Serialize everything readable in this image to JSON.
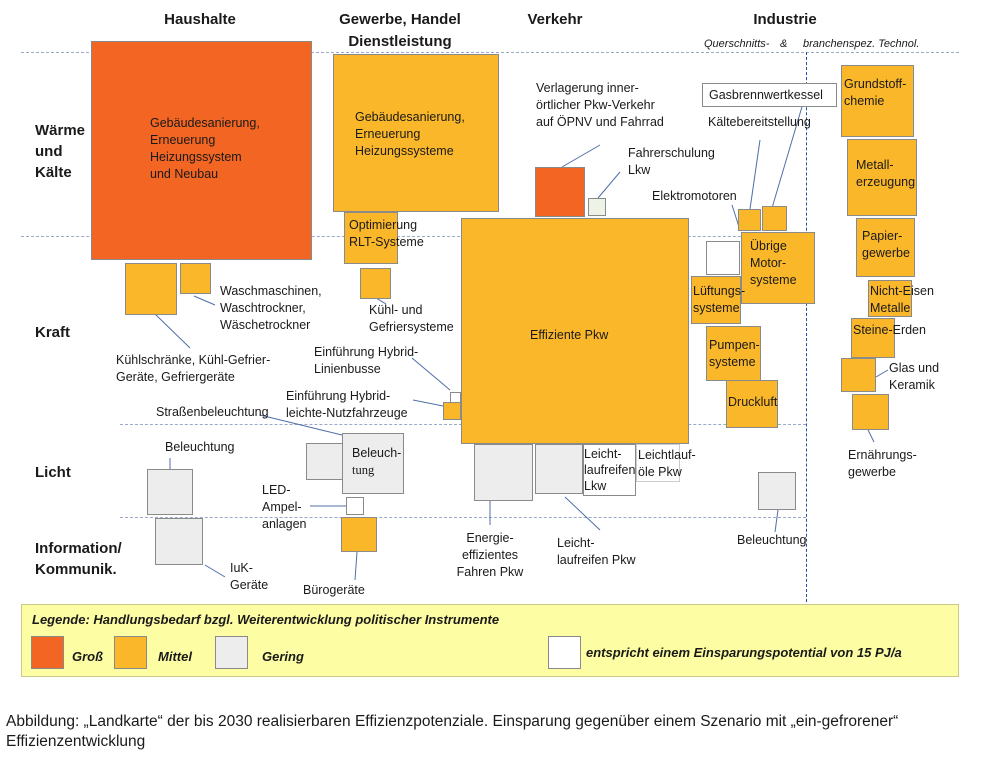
{
  "columns": {
    "haushalte": "Haushalte",
    "gewerbe_1": "Gewerbe, Handel",
    "gewerbe_2": "Dienstleistung",
    "verkehr": "Verkehr",
    "industrie": "Industrie",
    "industrie_sub_1": "Querschnitts-",
    "industrie_sub_2": "&",
    "industrie_sub_3": "branchenspez. Technol."
  },
  "rows": {
    "waerme_1": "Wärme",
    "waerme_2": "und",
    "waerme_3": "Kälte",
    "kraft": "Kraft",
    "licht": "Licht",
    "info_1": "Information/",
    "info_2": "Kommunik."
  },
  "boxes": {
    "hh_waerme": [
      "Gebäudesanierung,",
      "Erneuerung",
      "Heizungssystem",
      "und Neubau"
    ],
    "ghd_waerme": [
      "Gebäudesanierung,",
      "Erneuerung",
      "Heizungssysteme"
    ],
    "ghd_rlt": [
      "Optimierung",
      "RLT-Systeme"
    ],
    "pkw": "Effiziente Pkw",
    "ghd_licht_1": "Beleuch-",
    "ghd_licht_2": "tung",
    "lueftung": [
      "Lüftungs-",
      "systeme"
    ],
    "motor": [
      "Übrige",
      "Motor-",
      "systeme"
    ],
    "pumpen": [
      "Pumpen-",
      "systeme"
    ],
    "druckluft": "Druckluft",
    "grundstoff": [
      "Grundstoff-",
      "chemie"
    ],
    "metall": [
      "Metall-",
      "erzeugung"
    ],
    "papier": [
      "Papier-",
      "gewerbe"
    ],
    "ne": [
      "Nicht-Eisen",
      "Metalle"
    ],
    "steine": "Steine-Erden",
    "leicht_lkw": [
      "Leicht-",
      "laufreifen",
      "Lkw"
    ],
    "gasbrenn": "Gasbrennwertkessel"
  },
  "labels": {
    "wasch": [
      "Waschmaschinen,",
      "Waschtrockner,",
      "Wäschetrockner"
    ],
    "kuehl_hh": [
      "Kühlschränke, Kühl-Gefrier-",
      "Geräte, Gefriergeräte"
    ],
    "kuehl_ghd": [
      "Kühl- und",
      "Gefriersysteme"
    ],
    "hybrid_bus": [
      "Einführung Hybrid-",
      "Linienbusse"
    ],
    "hybrid_nfz": [
      "Einführung Hybrid-",
      "leichte-Nutzfahrzeuge"
    ],
    "strasse": "Straßenbeleuchtung",
    "beleuchtung_hh": "Beleuchtung",
    "led": [
      "LED-",
      "Ampel-",
      "anlagen"
    ],
    "iuk": [
      "IuK-",
      "Geräte"
    ],
    "buero": "Bürogeräte",
    "verlagerung": [
      "Verlagerung inner-",
      "örtlicher Pkw-Verkehr",
      "auf  ÖPNV und Fahrrad"
    ],
    "fahrer": [
      "Fahrerschulung",
      "Lkw"
    ],
    "energie_fahren": [
      "Energie-",
      "effizientes",
      "Fahren Pkw"
    ],
    "leicht_pkw": [
      "Leicht-",
      "laufreifen Pkw"
    ],
    "leicht_oele": [
      "Leichtlauf-",
      "öle Pkw"
    ],
    "elektromotoren": "Elektromotoren",
    "kaelte": "Kältebereitstellung",
    "beleuchtung_ind": "Beleuchtung",
    "glas": [
      "Glas und",
      "Keramik"
    ],
    "ernaehrung": [
      "Ernährungs-",
      "gewerbe"
    ]
  },
  "legend": {
    "title": "Legende:   Handlungsbedarf bzgl. Weiterentwicklung politischer Instrumente",
    "gross": "Groß",
    "mittel": "Mittel",
    "gering": "Gering",
    "scale": "entspricht einem Einsparungspotential von 15 PJ/a"
  },
  "caption": "Abbildung: „Landkarte“ der bis 2030 realisierbaren Effizienzpotenziale. Einsparung gegenüber einem Szenario mit „ein-gefrorener“ Effizienzentwicklung",
  "colors": {
    "gross": "#f26522",
    "mittel": "#fbb72a",
    "gering": "#ededed",
    "legend_bg": "#fdfda4"
  }
}
